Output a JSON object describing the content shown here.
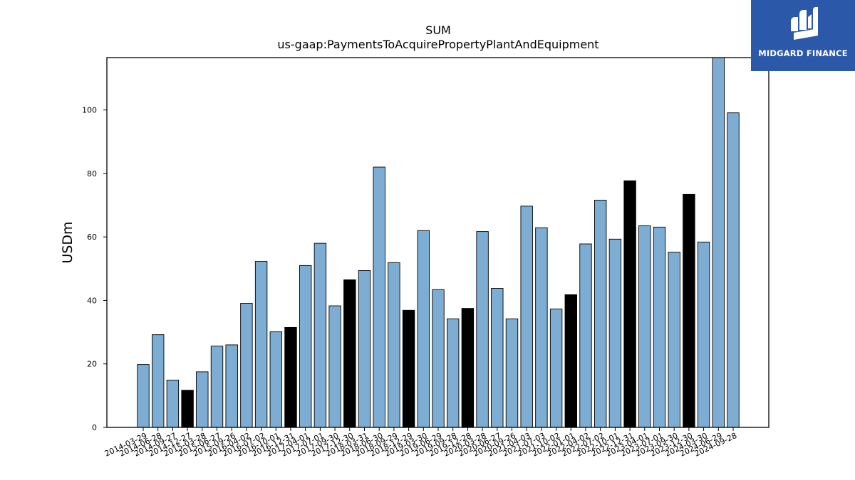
{
  "chart_data": {
    "type": "bar",
    "title": "SUM",
    "subtitle": "us-gaap:PaymentsToAcquirePropertyPlantAndEquipment",
    "xlabel": "",
    "ylabel": "USDm",
    "ylim": [
      0,
      116.5
    ],
    "yticks": [
      0,
      20,
      40,
      60,
      80,
      100
    ],
    "grid": false,
    "colors": {
      "quarter": "#7eadd3",
      "annual": "#000000",
      "edge": "#000000"
    },
    "categories": [
      "2014-03-29",
      "2014-06-28",
      "2014-09-27",
      "2014-12-27",
      "2015-03-28",
      "2015-06-27",
      "2015-09-26",
      "2016-04-02",
      "2016-07-02",
      "2016-10-01",
      "2016-12-31",
      "2017-04-01",
      "2017-07-01",
      "2017-09-30",
      "2017-12-30",
      "2018-03-31",
      "2018-06-30",
      "2018-09-29",
      "2018-12-29",
      "2019-03-30",
      "2019-06-29",
      "2019-09-28",
      "2019-12-28",
      "2020-03-28",
      "2020-06-27",
      "2020-09-26",
      "2021-04-03",
      "2021-07-03",
      "2021-10-02",
      "2022-01-01",
      "2022-04-02",
      "2022-07-02",
      "2022-10-01",
      "2022-12-31",
      "2023-04-01",
      "2023-07-01",
      "2023-09-30",
      "2023-12-30",
      "2024-03-30",
      "2024-06-29",
      "2024-09-28"
    ],
    "values": [
      19.8,
      29.2,
      14.9,
      11.7,
      17.5,
      25.6,
      26.0,
      39.1,
      52.3,
      30.1,
      31.5,
      51.0,
      58.0,
      38.3,
      46.5,
      49.4,
      82.0,
      51.9,
      36.9,
      62.0,
      43.4,
      34.2,
      37.5,
      61.7,
      43.8,
      34.2,
      69.7,
      62.9,
      37.3,
      41.8,
      57.8,
      71.6,
      59.3,
      77.7,
      63.5,
      63.1,
      55.2,
      73.4,
      58.4,
      116.8,
      99.1
    ],
    "highlight": [
      false,
      false,
      false,
      true,
      false,
      false,
      false,
      false,
      false,
      false,
      true,
      false,
      false,
      false,
      true,
      false,
      false,
      false,
      true,
      false,
      false,
      false,
      true,
      false,
      false,
      false,
      false,
      false,
      false,
      true,
      false,
      false,
      false,
      true,
      false,
      false,
      false,
      true,
      false,
      false,
      false
    ]
  },
  "logo": {
    "text": "MIDGARD FINANCE",
    "color": "#2b58a8"
  }
}
